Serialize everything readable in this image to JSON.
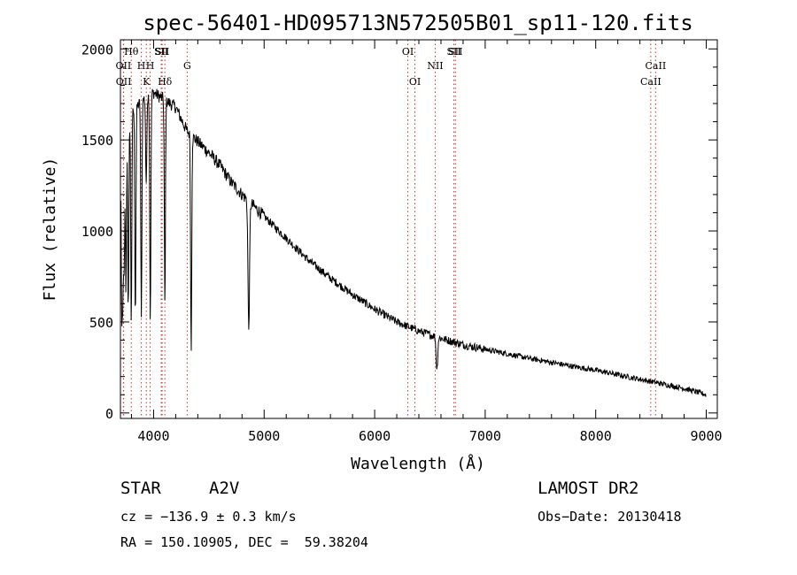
{
  "chart_data": {
    "type": "line",
    "title": "spec-56401-HD095713N572505B01_sp11-120.fits",
    "xlabel": "Wavelength (Å)",
    "ylabel": "Flux (relative)",
    "xlim": [
      3700,
      9100
    ],
    "ylim": [
      -30,
      2050
    ],
    "x_ticks": [
      4000,
      5000,
      6000,
      7000,
      8000,
      9000
    ],
    "y_ticks": [
      0,
      500,
      1000,
      1500,
      2000
    ],
    "grid": false,
    "line_color": "#000000",
    "marker_color": "#cc3333",
    "spectral_lines": [
      {
        "label": "Hθ",
        "x": 3798,
        "row": 0
      },
      {
        "label": "OII",
        "x": 3727,
        "row": 1
      },
      {
        "label": "OII",
        "x": 3729,
        "row": 2
      },
      {
        "label": "H",
        "x": 3889,
        "row": 1
      },
      {
        "label": "K",
        "x": 3934,
        "row": 2
      },
      {
        "label": "H",
        "x": 3969,
        "row": 1
      },
      {
        "label": "SII",
        "x": 4069,
        "row": 0
      },
      {
        "label": "SII",
        "x": 4077,
        "row": 0
      },
      {
        "label": "Hδ",
        "x": 4102,
        "row": 2
      },
      {
        "label": "G",
        "x": 4304,
        "row": 1
      },
      {
        "label": "OI",
        "x": 6300,
        "row": 0
      },
      {
        "label": "OI",
        "x": 6364,
        "row": 2
      },
      {
        "label": "NII",
        "x": 6548,
        "row": 1
      },
      {
        "label": "SII",
        "x": 6717,
        "row": 0
      },
      {
        "label": "SII",
        "x": 6731,
        "row": 0
      },
      {
        "label": "CaII",
        "x": 8498,
        "row": 2
      },
      {
        "label": "CaII",
        "x": 8542,
        "row": 1
      }
    ],
    "absorption_features": [
      {
        "x": 3712,
        "depth": 900
      },
      {
        "x": 3722,
        "depth": 800
      },
      {
        "x": 3734,
        "depth": 750
      },
      {
        "x": 3750,
        "depth": 900
      },
      {
        "x": 3771,
        "depth": 1050
      },
      {
        "x": 3798,
        "depth": 1150
      },
      {
        "x": 3835,
        "depth": 1150
      },
      {
        "x": 3889,
        "depth": 1200
      },
      {
        "x": 3933,
        "depth": 500
      },
      {
        "x": 3970,
        "depth": 1250
      },
      {
        "x": 4102,
        "depth": 1150
      },
      {
        "x": 4340,
        "depth": 1200
      },
      {
        "x": 4861,
        "depth": 700
      },
      {
        "x": 6563,
        "depth": 180
      }
    ],
    "continuum": [
      [
        3700,
        1480
      ],
      [
        3800,
        1650
      ],
      [
        3900,
        1720
      ],
      [
        4000,
        1760
      ],
      [
        4100,
        1720
      ],
      [
        4200,
        1680
      ],
      [
        4300,
        1550
      ],
      [
        4400,
        1490
      ],
      [
        4500,
        1430
      ],
      [
        4600,
        1360
      ],
      [
        4700,
        1270
      ],
      [
        4800,
        1200
      ],
      [
        4900,
        1140
      ],
      [
        5000,
        1080
      ],
      [
        5200,
        960
      ],
      [
        5400,
        840
      ],
      [
        5600,
        740
      ],
      [
        5800,
        650
      ],
      [
        6000,
        570
      ],
      [
        6200,
        500
      ],
      [
        6400,
        450
      ],
      [
        6600,
        410
      ],
      [
        6800,
        375
      ],
      [
        7000,
        350
      ],
      [
        7200,
        325
      ],
      [
        7400,
        300
      ],
      [
        7600,
        278
      ],
      [
        7800,
        255
      ],
      [
        8000,
        235
      ],
      [
        8200,
        210
      ],
      [
        8400,
        185
      ],
      [
        8600,
        160
      ],
      [
        8800,
        135
      ],
      [
        9000,
        100
      ]
    ]
  },
  "info": {
    "object_class": "STAR",
    "subclass": "A2V",
    "survey": "LAMOST DR2",
    "redshift_line": "cz = −136.9 ± 0.3 km/s",
    "obs_date_line": "Obs−Date: 20130418",
    "coord_line": "RA = 150.10905, DEC =  59.38204"
  }
}
